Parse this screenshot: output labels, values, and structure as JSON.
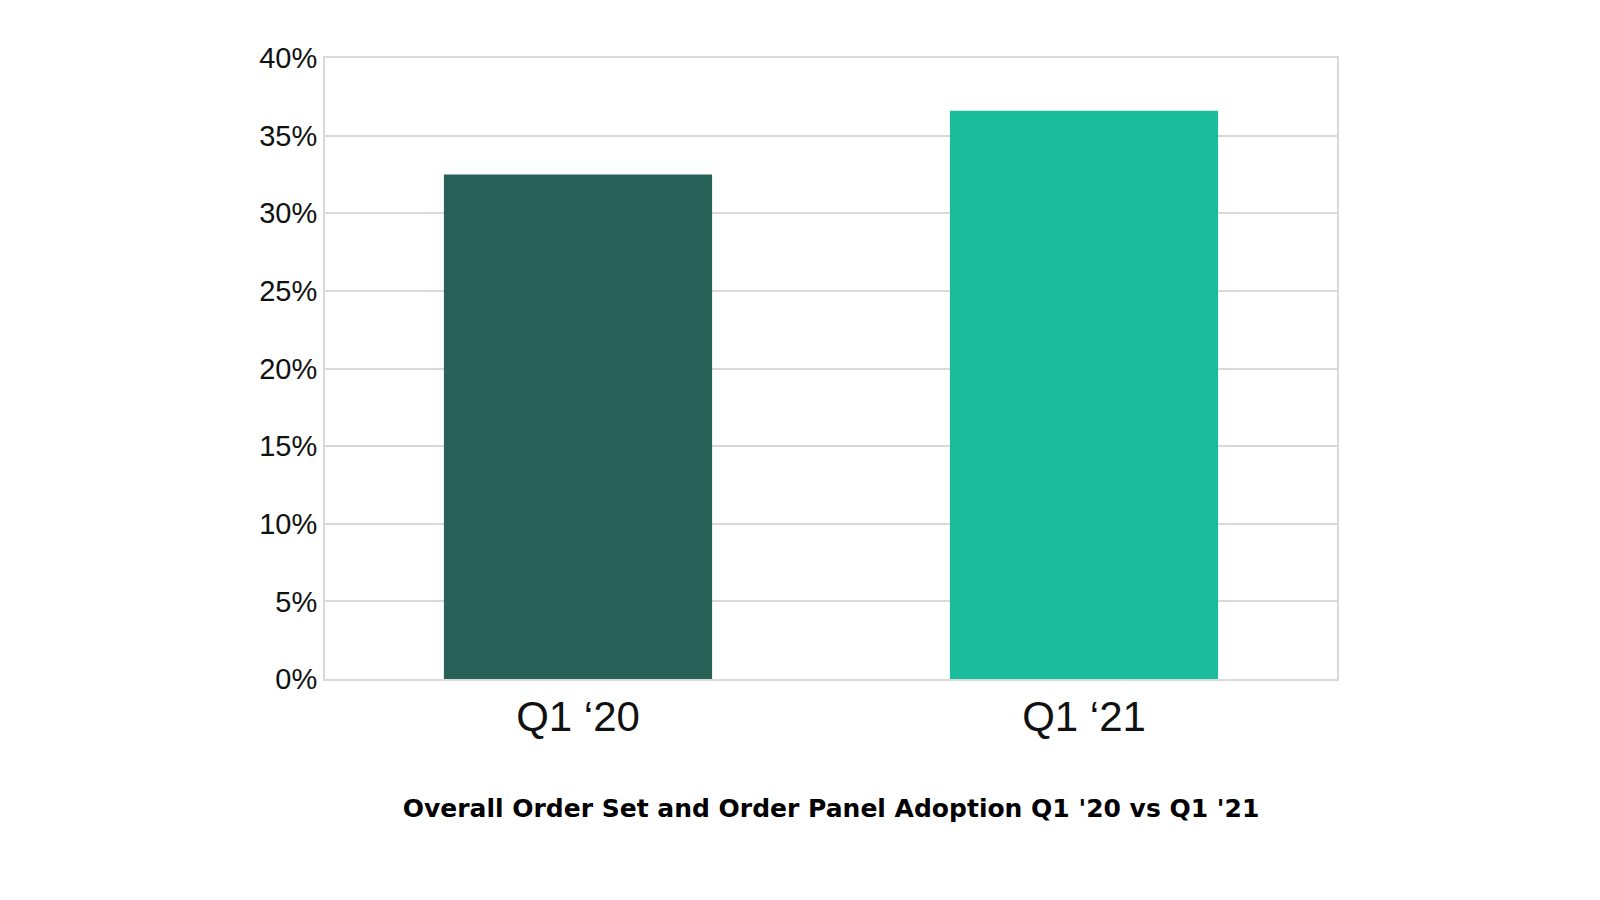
{
  "chart_data": {
    "type": "bar",
    "title": "Overall Order Set and Order Panel Adoption Q1 '20 vs Q1 '21",
    "categories": [
      "Q1 ‘20",
      "Q1 ‘21"
    ],
    "values": [
      32.5,
      36.6
    ],
    "colors": [
      "#276158",
      "#1abc9c"
    ],
    "ylim": [
      0,
      40
    ],
    "yticks": [
      {
        "value": 0,
        "label": "0%"
      },
      {
        "value": 5,
        "label": "5%"
      },
      {
        "value": 10,
        "label": "10%"
      },
      {
        "value": 15,
        "label": "15%"
      },
      {
        "value": 20,
        "label": "20%"
      },
      {
        "value": 25,
        "label": "25%"
      },
      {
        "value": 30,
        "label": "30%"
      },
      {
        "value": 35,
        "label": "35%"
      },
      {
        "value": 40,
        "label": "40%"
      }
    ],
    "grid": true
  }
}
